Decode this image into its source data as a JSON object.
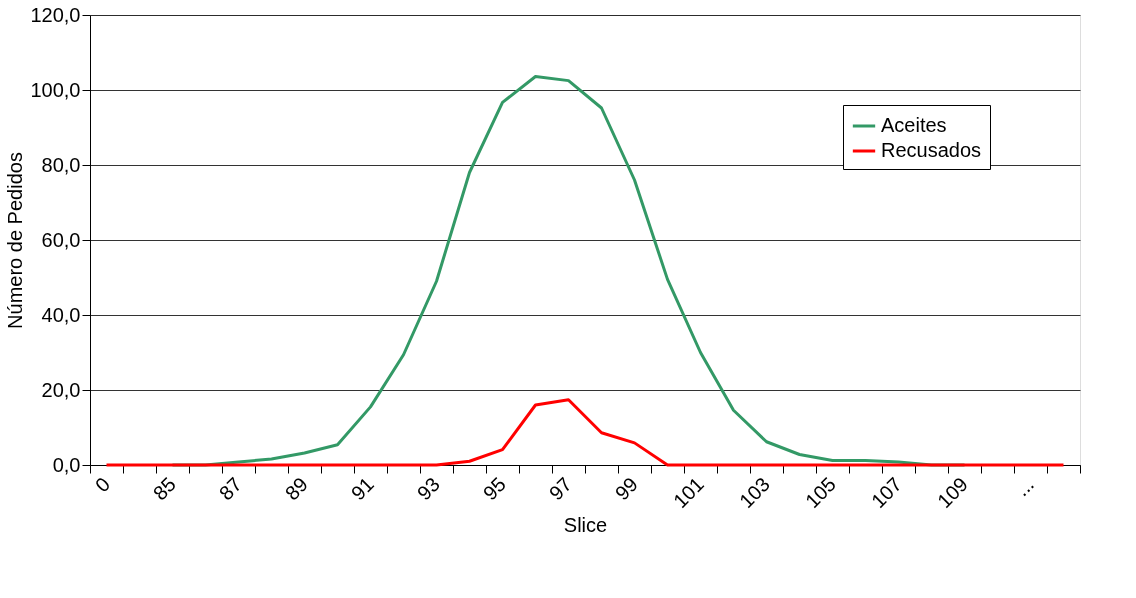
{
  "chart_data": {
    "type": "line",
    "xlabel": "Slice",
    "ylabel": "Número de Pedidos",
    "categories": [
      "0",
      null,
      "85",
      null,
      "87",
      null,
      "89",
      null,
      "91",
      null,
      "93",
      null,
      "95",
      null,
      "97",
      null,
      "99",
      null,
      "101",
      null,
      "103",
      null,
      "105",
      null,
      "107",
      null,
      "109",
      null,
      "...",
      null
    ],
    "series": [
      {
        "name": "Aceites",
        "color": "#339966",
        "values": [
          null,
          null,
          0,
          0,
          0.8,
          1.6,
          3.2,
          5.4,
          15.5,
          29.4,
          49,
          78,
          96.7,
          103.6,
          102.5,
          95.2,
          76,
          49.5,
          30,
          14.6,
          6.2,
          2.8,
          1.2,
          1.2,
          0.8,
          0,
          0,
          null,
          null,
          null
        ]
      },
      {
        "name": "Recusados",
        "color": "#ff0000",
        "values": [
          0,
          0,
          0,
          0,
          0,
          0,
          0,
          0,
          0,
          0,
          0,
          1.0,
          4.1,
          16,
          17.4,
          8.6,
          5.9,
          0,
          0,
          0,
          0,
          0,
          0,
          0,
          0,
          0,
          0,
          0,
          0,
          0
        ]
      }
    ],
    "ylim": [
      0,
      120
    ],
    "yticks": [
      {
        "value": 0,
        "label": "0,0"
      },
      {
        "value": 20,
        "label": "20,0"
      },
      {
        "value": 40,
        "label": "40,0"
      },
      {
        "value": 60,
        "label": "60,0"
      },
      {
        "value": 80,
        "label": "80,0"
      },
      {
        "value": 100,
        "label": "100,0"
      },
      {
        "value": 120,
        "label": "120,0"
      }
    ],
    "grid": "y",
    "legend": "top right",
    "marker": "none",
    "line_style": "solid"
  }
}
